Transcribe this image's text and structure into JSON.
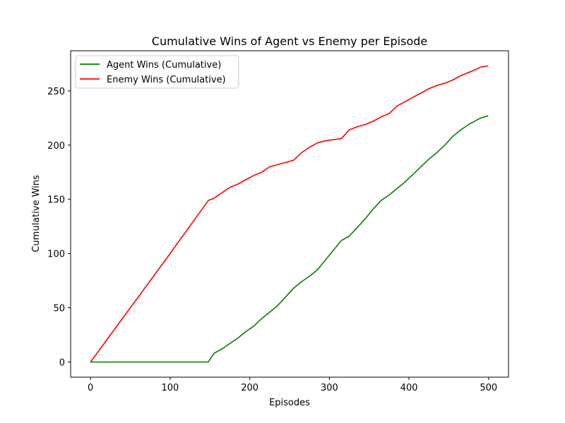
{
  "chart_data": {
    "type": "line",
    "title": "Cumulative Wins of Agent vs Enemy per Episode",
    "xlabel": "Episodes",
    "ylabel": "Cumulative Wins",
    "xlim": [
      -25,
      525
    ],
    "ylim": [
      -14,
      287
    ],
    "xticks": [
      0,
      100,
      200,
      300,
      400,
      500
    ],
    "yticks": [
      0,
      50,
      100,
      150,
      200,
      250
    ],
    "grid": false,
    "legend_position": "top-left",
    "series": [
      {
        "name": "Agent Wins (Cumulative)",
        "color": "#008000",
        "x": [
          0,
          50,
          100,
          148,
          155,
          165,
          175,
          185,
          195,
          205,
          215,
          225,
          235,
          245,
          255,
          265,
          275,
          285,
          295,
          305,
          315,
          325,
          335,
          345,
          355,
          365,
          375,
          385,
          395,
          405,
          415,
          425,
          435,
          445,
          455,
          465,
          475,
          485,
          490,
          499
        ],
        "y": [
          0,
          0,
          0,
          0,
          8,
          12,
          17,
          22,
          28,
          33,
          40,
          46,
          52,
          60,
          68,
          74,
          79,
          85,
          94,
          103,
          112,
          116,
          124,
          132,
          141,
          149,
          154,
          160,
          166,
          173,
          180,
          187,
          193,
          200,
          208,
          214,
          219,
          223,
          225,
          227
        ]
      },
      {
        "name": "Enemy Wins (Cumulative)",
        "color": "#ff0000",
        "x": [
          0,
          50,
          100,
          148,
          155,
          165,
          175,
          185,
          195,
          205,
          215,
          225,
          235,
          245,
          255,
          265,
          275,
          285,
          295,
          305,
          315,
          325,
          335,
          345,
          355,
          365,
          375,
          385,
          395,
          405,
          415,
          425,
          435,
          445,
          455,
          465,
          475,
          485,
          490,
          499
        ],
        "y": [
          0,
          50,
          100,
          149,
          151,
          156,
          161,
          164,
          168,
          172,
          175,
          180,
          182,
          184,
          186,
          193,
          198,
          202,
          204,
          205,
          206,
          214,
          217,
          219,
          222,
          226,
          229,
          236,
          240,
          244,
          248,
          252,
          255,
          257,
          260,
          264,
          267,
          270,
          272,
          273
        ]
      }
    ]
  }
}
